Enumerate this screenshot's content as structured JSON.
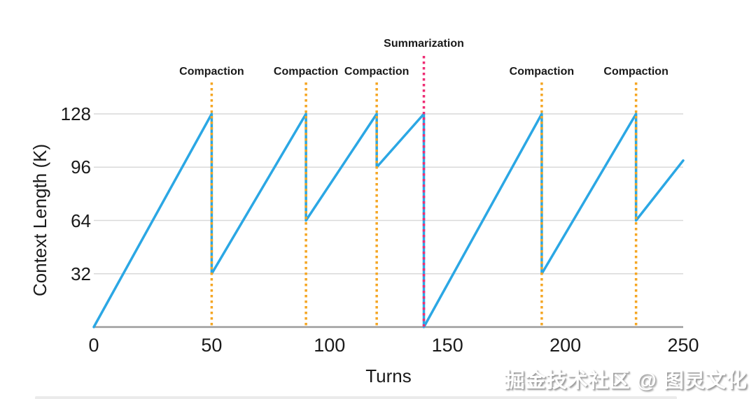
{
  "chart_data": {
    "type": "line",
    "title": "",
    "xlabel": "Turns",
    "ylabel": "Context Length (K)",
    "xlim": [
      0,
      250
    ],
    "ylim": [
      0,
      128
    ],
    "x_ticks": [
      0,
      50,
      100,
      150,
      200,
      250
    ],
    "y_ticks": [
      32,
      64,
      96,
      128
    ],
    "grid": "horizontal-only",
    "legend": "none",
    "grid_color": "#D9D9D9",
    "axis_color": "#9B9B9B",
    "series": [
      {
        "name": "context-length",
        "color": "#2BA7E4",
        "points": [
          [
            0,
            0
          ],
          [
            50,
            128
          ],
          [
            50,
            32
          ],
          [
            90,
            128
          ],
          [
            90,
            64
          ],
          [
            120,
            128
          ],
          [
            120,
            96
          ],
          [
            140,
            128
          ],
          [
            140,
            0
          ],
          [
            190,
            128
          ],
          [
            190,
            32
          ],
          [
            230,
            128
          ],
          [
            230,
            64
          ],
          [
            250,
            100
          ]
        ]
      }
    ],
    "annotations": [
      {
        "label": "Compaction",
        "x": 50,
        "color": "#F5A623",
        "style": "dotted",
        "tier": "normal"
      },
      {
        "label": "Compaction",
        "x": 90,
        "color": "#F5A623",
        "style": "dotted",
        "tier": "normal"
      },
      {
        "label": "Compaction",
        "x": 120,
        "color": "#F5A623",
        "style": "dotted",
        "tier": "normal"
      },
      {
        "label": "Summarization",
        "x": 140,
        "color": "#EE2D74",
        "style": "dotted",
        "tier": "high"
      },
      {
        "label": "Compaction",
        "x": 190,
        "color": "#F5A623",
        "style": "dotted",
        "tier": "normal"
      },
      {
        "label": "Compaction",
        "x": 230,
        "color": "#F5A623",
        "style": "dotted",
        "tier": "normal"
      }
    ]
  },
  "watermark": "掘金技术社区 @ 图灵文化"
}
